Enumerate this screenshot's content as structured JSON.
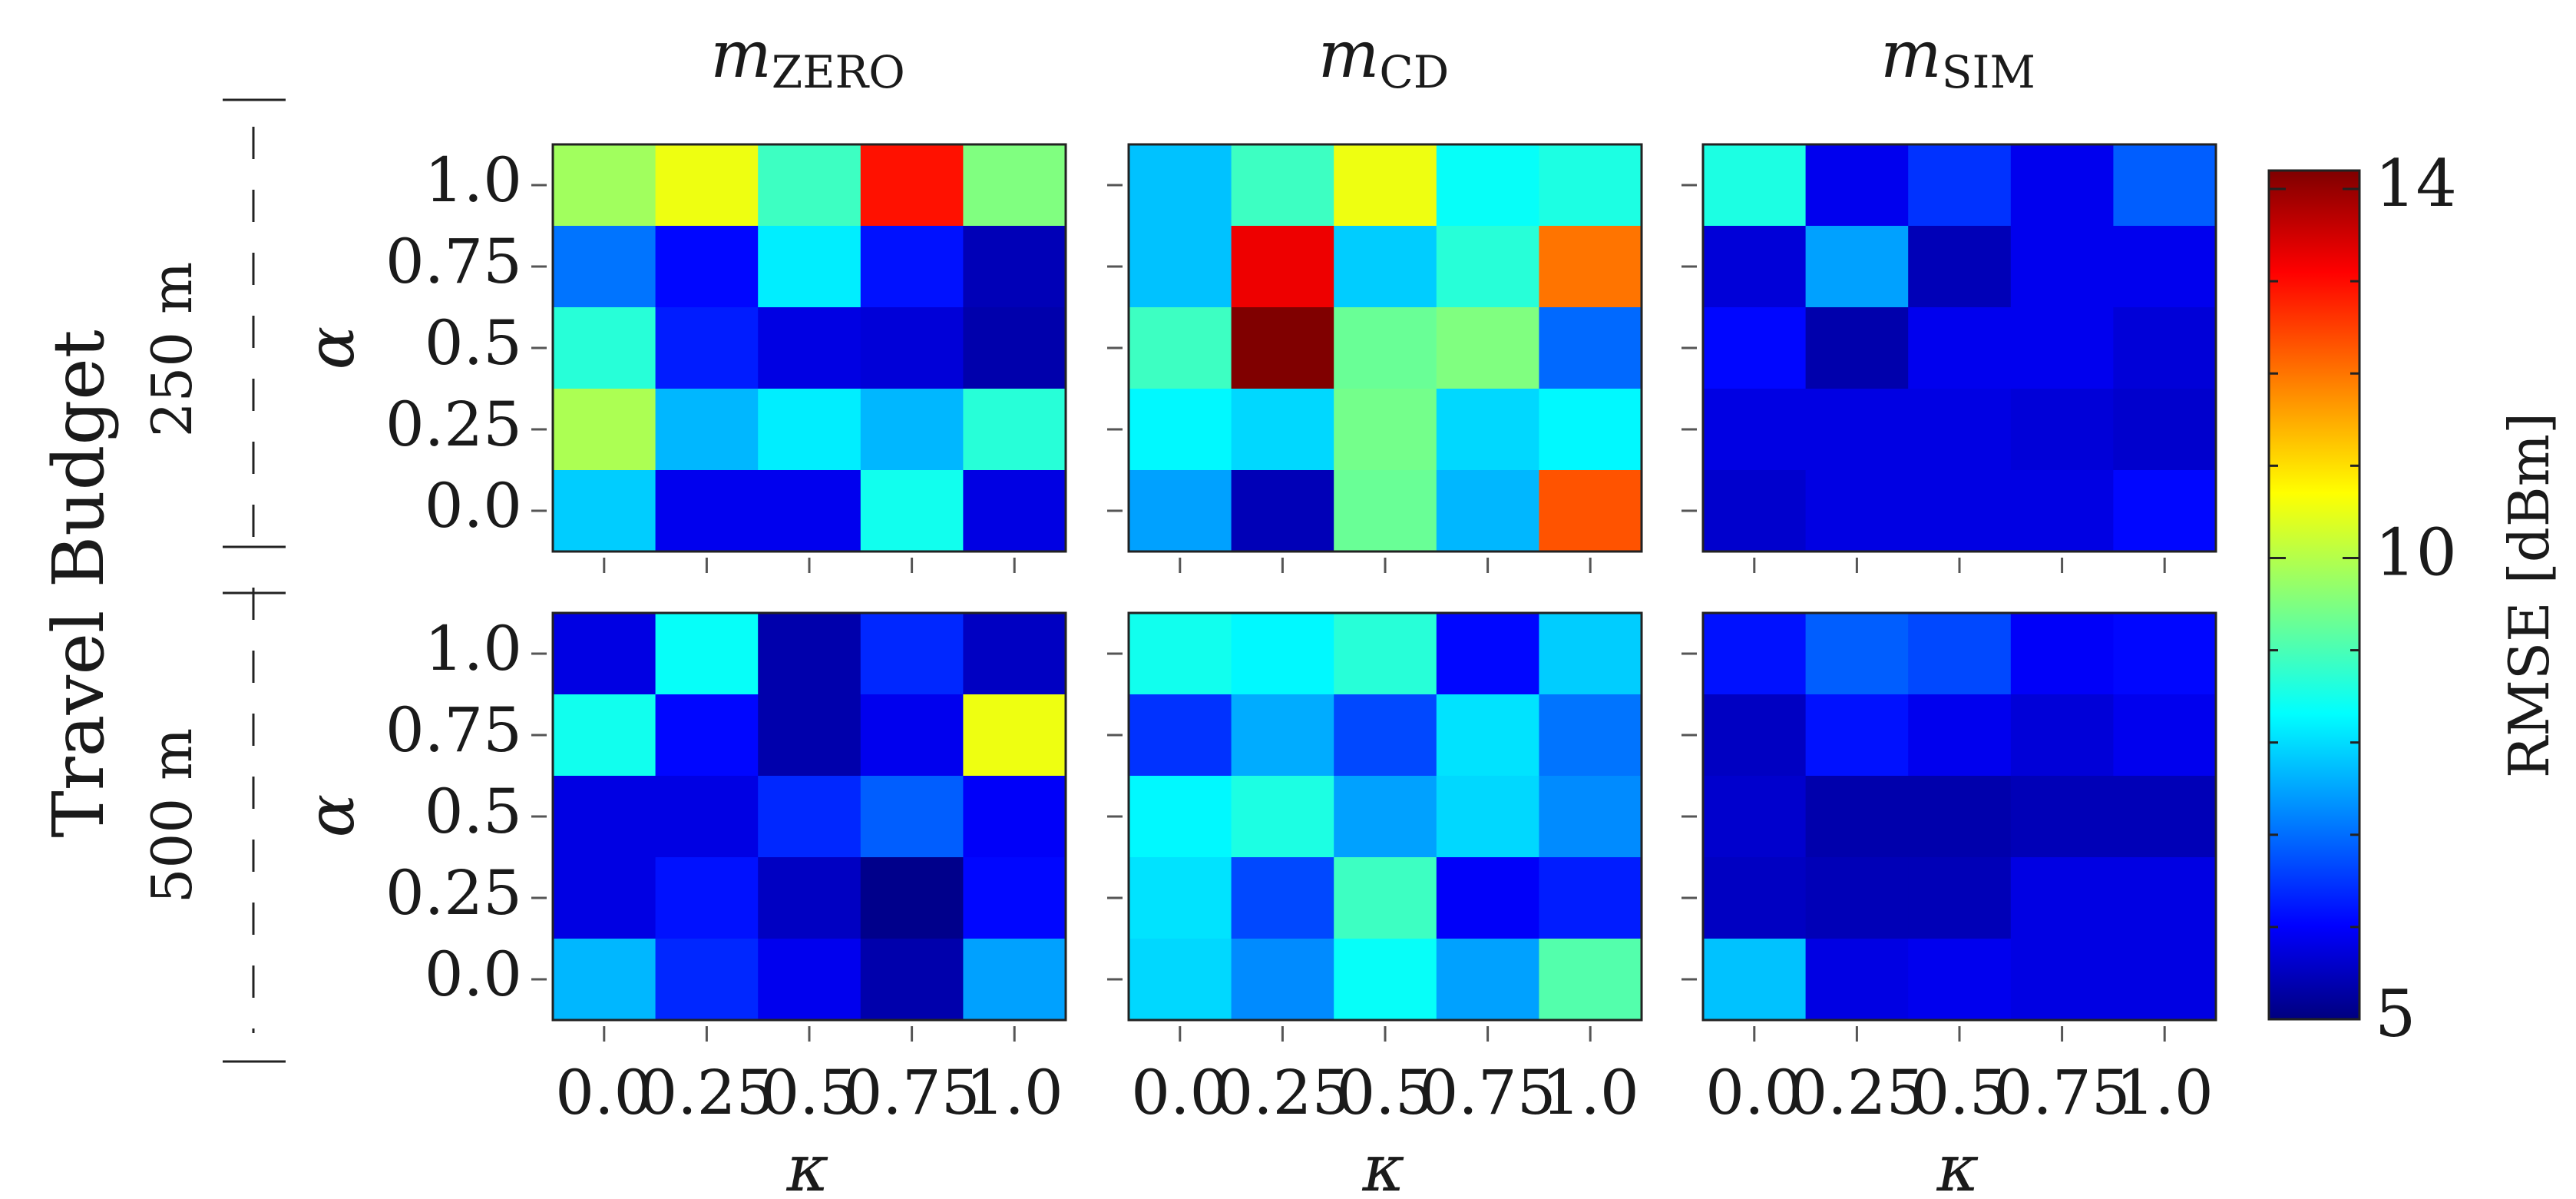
{
  "figure": {
    "group_label": "Travel Budget",
    "x_axis_label": "κ",
    "y_axis_label": "α"
  },
  "columns": [
    {
      "main": "m",
      "sub": "ZERO"
    },
    {
      "main": "m",
      "sub": "CD"
    },
    {
      "main": "m",
      "sub": "SIM"
    }
  ],
  "rows": [
    {
      "label": "250 m"
    },
    {
      "label": "500 m"
    }
  ],
  "colorbar": {
    "label": "RMSE [dBm]",
    "min": 5,
    "max": 14.2,
    "ticks": [
      "5",
      "10",
      "14"
    ],
    "tick_values": [
      5,
      10,
      14
    ],
    "colormap": "jet"
  },
  "chart_data": {
    "type": "heatmap",
    "x_tick_labels": [
      "0.0",
      "0.25",
      "0.5",
      "0.75",
      "1.0"
    ],
    "y_tick_labels": [
      "1.0",
      "0.75",
      "0.5",
      "0.25",
      "0.0"
    ],
    "x_values": [
      0.0,
      0.25,
      0.5,
      0.75,
      1.0
    ],
    "y_values": [
      1.0,
      0.75,
      0.5,
      0.25,
      0.0
    ],
    "value_range": [
      5,
      14.2
    ],
    "panels": [
      {
        "row": "250 m",
        "column": "ZERO",
        "values": [
          [
            9.9,
            10.6,
            9.0,
            12.9,
            9.6
          ],
          [
            7.2,
            6.2,
            8.3,
            6.3,
            5.5
          ],
          [
            8.8,
            6.4,
            5.9,
            5.8,
            5.4
          ],
          [
            10.0,
            7.8,
            8.3,
            7.8,
            8.8
          ],
          [
            8.0,
            6.0,
            6.0,
            8.6,
            5.9
          ]
        ]
      },
      {
        "row": "250 m",
        "column": "CD",
        "values": [
          [
            7.9,
            9.0,
            10.6,
            8.5,
            8.7
          ],
          [
            7.9,
            13.2,
            8.0,
            8.8,
            12.0
          ],
          [
            9.0,
            14.2,
            9.4,
            9.6,
            7.1
          ],
          [
            8.4,
            8.1,
            9.5,
            8.1,
            8.4
          ],
          [
            7.6,
            5.5,
            9.4,
            7.8,
            12.3
          ]
        ]
      },
      {
        "row": "250 m",
        "column": "SIM",
        "values": [
          [
            8.7,
            6.0,
            6.6,
            6.0,
            7.0
          ],
          [
            5.8,
            7.6,
            5.5,
            6.0,
            6.0
          ],
          [
            6.2,
            5.4,
            6.0,
            6.0,
            5.8
          ],
          [
            5.9,
            5.9,
            5.9,
            5.8,
            5.7
          ],
          [
            5.7,
            5.9,
            5.9,
            5.9,
            6.2
          ]
        ]
      },
      {
        "row": "500 m",
        "column": "ZERO",
        "values": [
          [
            5.9,
            8.5,
            5.4,
            6.5,
            5.6
          ],
          [
            8.6,
            6.2,
            5.4,
            6.0,
            10.6
          ],
          [
            5.9,
            5.9,
            6.5,
            7.0,
            6.1
          ],
          [
            5.9,
            6.3,
            5.6,
            5.1,
            6.2
          ],
          [
            7.8,
            6.5,
            6.0,
            5.4,
            7.6
          ]
        ]
      },
      {
        "row": "500 m",
        "column": "CD",
        "values": [
          [
            8.6,
            8.4,
            8.8,
            6.2,
            8.0
          ],
          [
            6.6,
            7.7,
            6.8,
            8.2,
            7.2
          ],
          [
            8.4,
            8.7,
            7.6,
            8.1,
            7.4
          ],
          [
            8.2,
            6.8,
            9.0,
            6.1,
            6.4
          ],
          [
            8.1,
            7.4,
            8.5,
            7.6,
            9.2
          ]
        ]
      },
      {
        "row": "500 m",
        "column": "SIM",
        "values": [
          [
            6.3,
            7.0,
            6.8,
            6.1,
            6.2
          ],
          [
            5.6,
            6.3,
            6.0,
            5.8,
            6.0
          ],
          [
            5.7,
            5.4,
            5.4,
            5.5,
            5.5
          ],
          [
            5.6,
            5.5,
            5.5,
            5.9,
            5.9
          ],
          [
            7.9,
            5.9,
            6.0,
            5.9,
            5.9
          ]
        ]
      }
    ]
  }
}
